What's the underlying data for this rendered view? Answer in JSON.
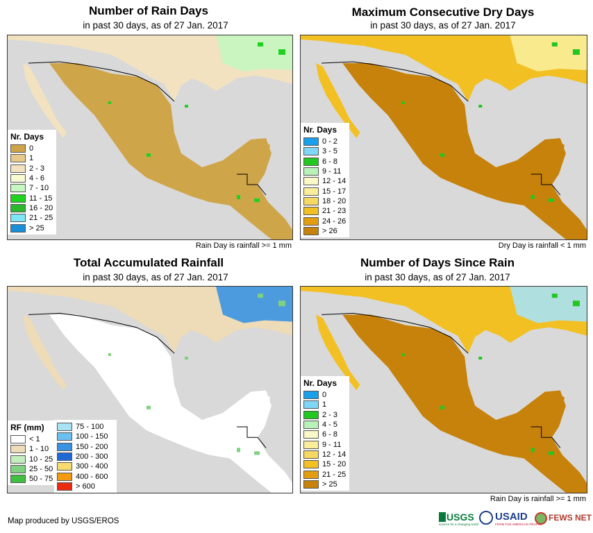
{
  "panels": [
    {
      "title": "Number of Rain Days",
      "subtitle": "in past 30 days, as of 27 Jan. 2017",
      "note": "Rain Day is rainfall >= 1 mm",
      "legend_title": "Nr. Days",
      "legend": [
        {
          "label": "0",
          "color": "#cfa54a"
        },
        {
          "label": "1",
          "color": "#e6c98a"
        },
        {
          "label": "2 - 3",
          "color": "#f2e2c0"
        },
        {
          "label": "4 - 6",
          "color": "#fafad2"
        },
        {
          "label": "7 - 10",
          "color": "#c6f7c0"
        },
        {
          "label": "11 - 15",
          "color": "#1fd21f"
        },
        {
          "label": "16 - 20",
          "color": "#2cb82c"
        },
        {
          "label": "21 - 25",
          "color": "#7fe6f5"
        },
        {
          "label": "> 25",
          "color": "#1a8ed6"
        }
      ],
      "palette": {
        "base": "#cfa54a",
        "north": "#f2e2c0",
        "ne": "#c6f7c0",
        "accent": "#1fd21f"
      }
    },
    {
      "title": "Maximum Consecutive Dry Days",
      "subtitle": "in past 30 days, as of 27 Jan. 2017",
      "note": "Dry Day is rainfall < 1 mm",
      "legend_title": "Nr. Days",
      "legend": [
        {
          "label": "0 - 2",
          "color": "#1aa0ea"
        },
        {
          "label": "3 - 5",
          "color": "#7fd7f5"
        },
        {
          "label": "6 - 8",
          "color": "#22c722"
        },
        {
          "label": "9 - 11",
          "color": "#b9f2b9"
        },
        {
          "label": "12 - 14",
          "color": "#fbf8c8"
        },
        {
          "label": "15 - 17",
          "color": "#fbee9a"
        },
        {
          "label": "18 - 20",
          "color": "#f7d862"
        },
        {
          "label": "21 - 23",
          "color": "#f2c023"
        },
        {
          "label": "24 - 26",
          "color": "#e39d0e"
        },
        {
          "label": "> 26",
          "color": "#c7820b"
        }
      ],
      "palette": {
        "base": "#c7820b",
        "north": "#f2c023",
        "ne": "#fbee9a",
        "accent": "#22c722"
      }
    },
    {
      "title": "Total Accumulated Rainfall",
      "subtitle": "in past 30 days, as of 27 Jan. 2017",
      "note": "",
      "legend_title": "RF (mm)",
      "legend": [
        {
          "label": "< 1",
          "color": "#ffffff"
        },
        {
          "label": "1 - 10",
          "color": "#eedbb8"
        },
        {
          "label": "10 - 25",
          "color": "#c4eec0"
        },
        {
          "label": "25 - 50",
          "color": "#7fd17f"
        },
        {
          "label": "50 - 75",
          "color": "#40c040"
        }
      ],
      "legend2": [
        {
          "label": "75 - 100",
          "color": "#a8e2f5"
        },
        {
          "label": "100 - 150",
          "color": "#6cc0ef"
        },
        {
          "label": "150 - 200",
          "color": "#3a93e2"
        },
        {
          "label": "200 - 300",
          "color": "#1d6ad4"
        },
        {
          "label": "300 - 400",
          "color": "#f7db6e"
        },
        {
          "label": "400 - 600",
          "color": "#f29a12"
        },
        {
          "label": "> 600",
          "color": "#ec2a10"
        }
      ],
      "palette": {
        "base": "#ffffff",
        "north": "#eedbb8",
        "ne": "#3a93e2",
        "accent": "#7fd17f"
      }
    },
    {
      "title": "Number of Days Since Rain",
      "subtitle": "in past 30 days, as of 27 Jan. 2017",
      "note": "Rain Day is rainfall >= 1 mm",
      "legend_title": "Nr. Days",
      "legend": [
        {
          "label": "0",
          "color": "#1aa0ea"
        },
        {
          "label": "1",
          "color": "#7fd7f5"
        },
        {
          "label": "2 - 3",
          "color": "#22c722"
        },
        {
          "label": "4 - 5",
          "color": "#b9f2b9"
        },
        {
          "label": "6 - 8",
          "color": "#fbf8c8"
        },
        {
          "label": "9 - 11",
          "color": "#fbee9a"
        },
        {
          "label": "12 - 14",
          "color": "#f7d862"
        },
        {
          "label": "15 - 20",
          "color": "#f2c023"
        },
        {
          "label": "21 - 25",
          "color": "#e39d0e"
        },
        {
          "label": "> 25",
          "color": "#c7820b"
        }
      ],
      "palette": {
        "base": "#c7820b",
        "north": "#f2c023",
        "ne": "#a8e2f5",
        "accent": "#22c722"
      }
    }
  ],
  "footer": {
    "credit": "Map produced by USGS/EROS",
    "logos": [
      "USGS",
      "USAID",
      "FEWS NET"
    ],
    "usgs_tagline": "science for a changing world",
    "usaid_tagline": "FROM THE AMERICAN PEOPLE"
  }
}
